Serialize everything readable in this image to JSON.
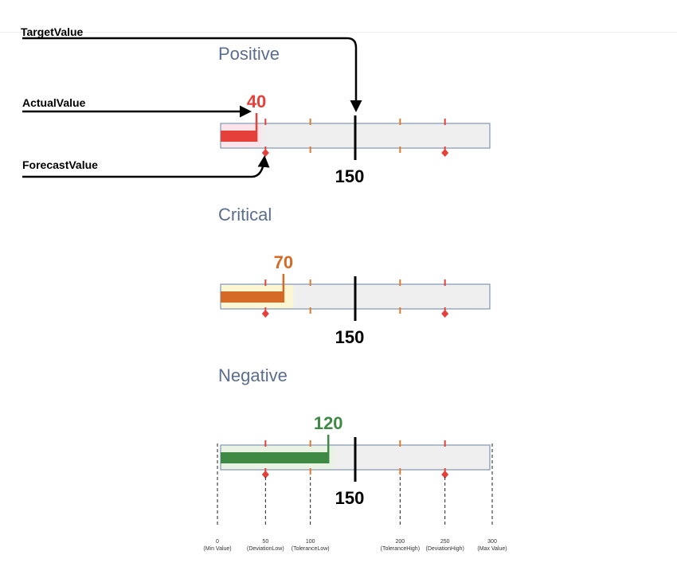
{
  "callouts": {
    "target": "TargetValue",
    "actual": "ActualValue",
    "forecast": "ForecastValue"
  },
  "scale": {
    "min": 0,
    "max": 300,
    "deviation_low": 50,
    "tolerance_low": 100,
    "tolerance_high": 200,
    "deviation_high": 250
  },
  "bullets": [
    {
      "title": "Positive",
      "actual": 40,
      "actual_label": "40",
      "forecast": 45,
      "target": 150,
      "target_label": "150",
      "color": "#e5403a",
      "bg": "#fde4ea"
    },
    {
      "title": "Critical",
      "actual": 70,
      "actual_label": "70",
      "forecast": 80,
      "target": 150,
      "target_label": "150",
      "color": "#d56a26",
      "bg": "#fdf6d2"
    },
    {
      "title": "Negative",
      "actual": 120,
      "actual_label": "120",
      "forecast": 125,
      "target": 150,
      "target_label": "150",
      "color": "#3e8a45",
      "bg": "#e9f3e3"
    }
  ],
  "axis": {
    "ticks": [
      {
        "value": "0",
        "label": "(Min Value)"
      },
      {
        "value": "50",
        "label": "(DeviationLow)"
      },
      {
        "value": "100",
        "label": "(ToleranceLow)"
      },
      {
        "value": "200",
        "label": "(ToleranceHigh)"
      },
      {
        "value": "250",
        "label": "(DeviationHigh)"
      },
      {
        "value": "300",
        "label": "(Max Value)"
      }
    ]
  },
  "colors": {
    "title": "#5b6e8c",
    "track": "#efefef",
    "track_border": "#8096b0",
    "tolerance_tick": "#e07a2e",
    "deviation_tick": "#e5403a",
    "target": "#000000"
  }
}
